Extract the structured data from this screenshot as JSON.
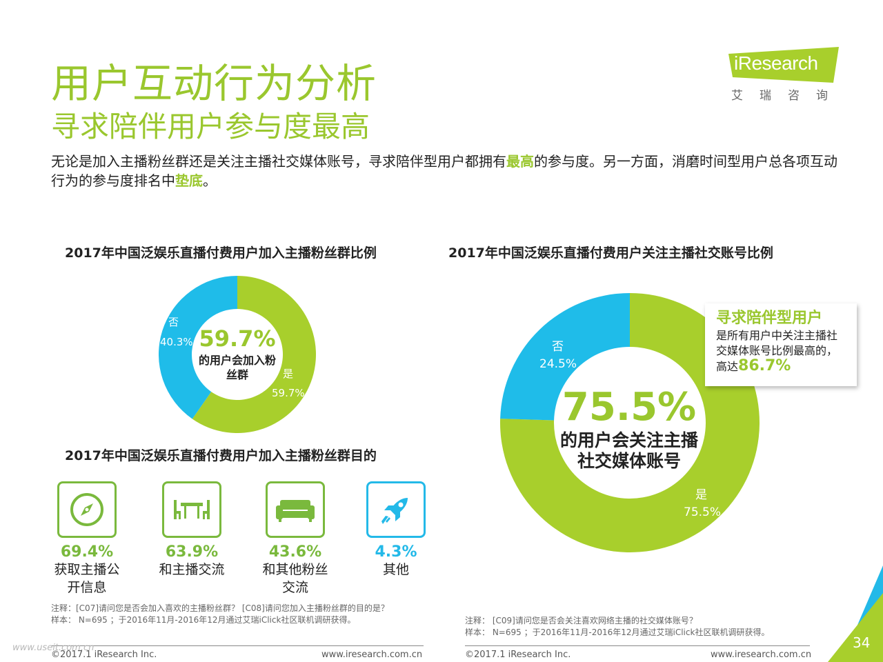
{
  "header": {
    "title": "用户互动行为分析",
    "subtitle": "寻求陪伴用户参与度最高",
    "desc_part1": "无论是加入主播粉丝群还是关注主播社交媒体账号，寻求陪伴型用户都拥有",
    "desc_hl1": "最高",
    "desc_part2": "的参与度。另一方面，消磨时间型用户总各项互动行为的参与度排名中",
    "desc_hl2": "垫底",
    "desc_part3": "。"
  },
  "logo": {
    "text": "iResearch",
    "cn": "艾瑞咨询"
  },
  "colors": {
    "green": "#a8cf2c",
    "blue": "#1fbce9",
    "accent_text": "#9ac72e",
    "teal_border": "#23b9e8"
  },
  "chart_data": [
    {
      "type": "pie",
      "title": "2017年中国泛娱乐直播付费用户加入主播粉丝群比例",
      "categories": [
        "是",
        "否"
      ],
      "values": [
        59.7,
        40.3
      ],
      "value_labels": [
        "59.7%",
        "40.3%"
      ],
      "center_value": "59.7%",
      "center_text": "的用户会加入粉丝群"
    },
    {
      "type": "pie",
      "title": "2017年中国泛娱乐直播付费用户关注主播社交账号比例",
      "categories": [
        "是",
        "否"
      ],
      "values": [
        75.5,
        24.5
      ],
      "value_labels": [
        "75.5%",
        "24.5%"
      ],
      "center_value": "75.5%",
      "center_text": "的用户会关注主播社交媒体账号"
    },
    {
      "type": "bar",
      "title": "2017年中国泛娱乐直播付费用户加入主播粉丝群目的",
      "categories": [
        "获取主播公开信息",
        "和主播交流",
        "和其他粉丝交流",
        "其他"
      ],
      "values": [
        69.4,
        63.9,
        43.6,
        4.3
      ],
      "value_labels": [
        "69.4%",
        "63.9%",
        "43.6%",
        "4.3%"
      ]
    }
  ],
  "purposes": [
    {
      "icon": "compass-icon",
      "pct": "69.4%",
      "label": "获取主播公开信息",
      "color": "#7ab93d"
    },
    {
      "icon": "table-chairs-icon",
      "pct": "63.9%",
      "label": "和主播交流",
      "color": "#7ab93d"
    },
    {
      "icon": "sofa-icon",
      "pct": "43.6%",
      "label": "和其他粉丝交流",
      "color": "#7ab93d"
    },
    {
      "icon": "rocket-icon",
      "pct": "4.3%",
      "label": "其他",
      "color": "#23b9e8"
    }
  ],
  "callout": {
    "title": "寻求陪伴型用户",
    "body": "是所有用户中关注主播社交媒体账号比例最高的，高达",
    "value": "86.7%"
  },
  "notes": {
    "left": "注释：[C07]请问您是否会加入喜欢的主播粉丝群？ [C08]请问您加入主播粉丝群的目的是？",
    "left_sample": "样本： N=695 ；于2016年11月-2016年12月通过艾瑞iClick社区联机调研获得。",
    "right": "注释： [C09]请问您是否会关注喜欢网络主播的社交媒体账号？",
    "right_sample": "样本： N=695 ；于2016年11月-2016年12月通过艾瑞iClick社区联机调研获得。"
  },
  "footer": {
    "copyright": "©2017.1 iResearch Inc.",
    "url": "www.iresearch.com.cn",
    "page": "34",
    "watermark": "www.useit.com.cn"
  }
}
